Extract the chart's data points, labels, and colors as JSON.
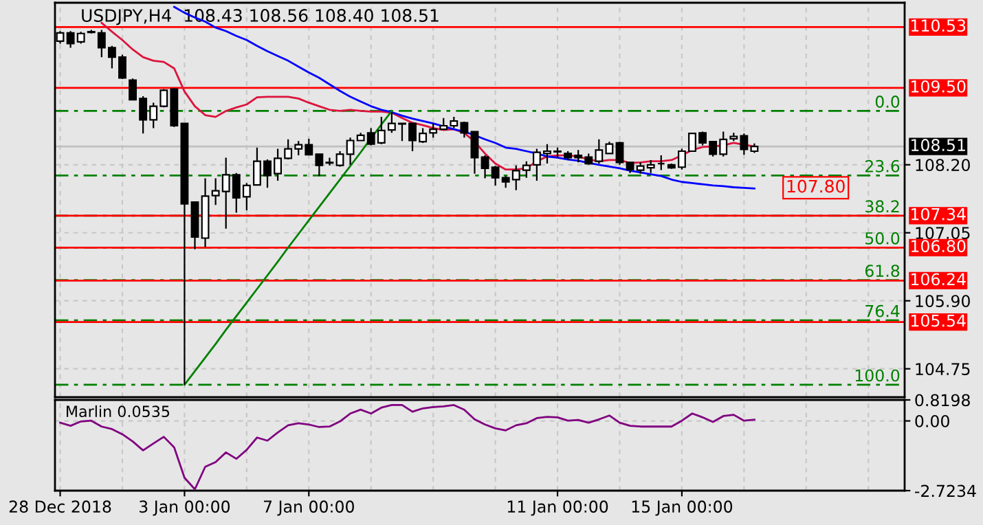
{
  "chart_data": [
    {
      "type": "candlestick",
      "title": "USDJPY,H4  108.43 108.56 108.40 108.51",
      "ohlc": [
        [
          110.29,
          110.46,
          110.25,
          110.43
        ],
        [
          110.43,
          110.46,
          110.18,
          110.25
        ],
        [
          110.28,
          110.45,
          110.25,
          110.42
        ],
        [
          110.45,
          110.48,
          110.42,
          110.44
        ],
        [
          110.43,
          110.48,
          110.02,
          110.18
        ],
        [
          110.18,
          110.21,
          109.83,
          110.02
        ],
        [
          110.02,
          110.06,
          109.65,
          109.67
        ],
        [
          109.63,
          109.66,
          109.29,
          109.3
        ],
        [
          109.32,
          109.36,
          108.73,
          108.96
        ],
        [
          108.96,
          109.25,
          108.82,
          109.19
        ],
        [
          109.19,
          109.48,
          109.17,
          109.46
        ],
        [
          109.48,
          109.5,
          108.84,
          108.86
        ],
        [
          108.9,
          108.91,
          104.48,
          107.54
        ],
        [
          107.57,
          107.58,
          106.77,
          106.98
        ],
        [
          106.96,
          107.97,
          106.81,
          107.67
        ],
        [
          107.68,
          107.97,
          107.52,
          107.76
        ],
        [
          107.75,
          108.32,
          107.12,
          108.03
        ],
        [
          108.03,
          108.06,
          107.39,
          107.64
        ],
        [
          107.66,
          107.89,
          107.43,
          107.85
        ],
        [
          107.86,
          108.49,
          107.85,
          108.26
        ],
        [
          108.26,
          108.29,
          107.81,
          108.02
        ],
        [
          108.05,
          108.47,
          107.93,
          108.31
        ],
        [
          108.31,
          108.63,
          108.29,
          108.47
        ],
        [
          108.47,
          108.6,
          108.36,
          108.54
        ],
        [
          108.54,
          108.64,
          108.36,
          108.37
        ],
        [
          108.38,
          108.39,
          108.01,
          108.19
        ],
        [
          108.24,
          108.32,
          108.19,
          108.23
        ],
        [
          108.19,
          108.43,
          108.17,
          108.38
        ],
        [
          108.38,
          108.66,
          108.2,
          108.61
        ],
        [
          108.61,
          108.74,
          108.6,
          108.7
        ],
        [
          108.74,
          108.82,
          108.53,
          108.55
        ],
        [
          108.57,
          109.01,
          108.55,
          108.78
        ],
        [
          108.79,
          109.09,
          108.74,
          108.9
        ],
        [
          108.9,
          108.91,
          108.6,
          108.89
        ],
        [
          108.9,
          108.91,
          108.43,
          108.61
        ],
        [
          108.59,
          108.82,
          108.57,
          108.73
        ],
        [
          108.74,
          108.9,
          108.66,
          108.8
        ],
        [
          108.8,
          108.99,
          108.79,
          108.86
        ],
        [
          108.86,
          109.01,
          108.82,
          108.94
        ],
        [
          108.91,
          108.93,
          108.66,
          108.74
        ],
        [
          108.76,
          108.77,
          108.05,
          108.32
        ],
        [
          108.33,
          108.36,
          107.97,
          108.14
        ],
        [
          108.16,
          108.18,
          107.85,
          107.98
        ],
        [
          107.98,
          108.01,
          107.81,
          107.91
        ],
        [
          107.95,
          108.19,
          107.77,
          108.1
        ],
        [
          108.11,
          108.26,
          107.98,
          108.19
        ],
        [
          108.2,
          108.47,
          107.93,
          108.41
        ],
        [
          108.39,
          108.55,
          108.22,
          108.43
        ],
        [
          108.43,
          108.49,
          108.32,
          108.42
        ],
        [
          108.39,
          108.43,
          108.28,
          108.32
        ],
        [
          108.36,
          108.45,
          108.24,
          108.32
        ],
        [
          108.33,
          108.39,
          108.2,
          108.22
        ],
        [
          108.26,
          108.63,
          108.22,
          108.45
        ],
        [
          108.39,
          108.59,
          108.38,
          108.55
        ],
        [
          108.57,
          108.59,
          108.2,
          108.24
        ],
        [
          108.24,
          108.25,
          108.06,
          108.12
        ],
        [
          108.11,
          108.24,
          108.05,
          108.18
        ],
        [
          108.15,
          108.28,
          108.06,
          108.2
        ],
        [
          108.22,
          108.36,
          108.11,
          108.22
        ],
        [
          108.2,
          108.22,
          108.13,
          108.15
        ],
        [
          108.16,
          108.47,
          108.12,
          108.43
        ],
        [
          108.43,
          108.74,
          108.42,
          108.73
        ],
        [
          108.74,
          108.76,
          108.53,
          108.57
        ],
        [
          108.59,
          108.6,
          108.34,
          108.38
        ],
        [
          108.38,
          108.76,
          108.34,
          108.63
        ],
        [
          108.64,
          108.74,
          108.6,
          108.68
        ],
        [
          108.69,
          108.73,
          108.37,
          108.46
        ],
        [
          108.43,
          108.56,
          108.4,
          108.51
        ],
        null,
        null,
        null,
        null,
        null,
        null,
        null,
        null,
        null,
        null,
        null,
        null,
        null,
        null
      ],
      "series": [
        {
          "type": "line",
          "color": "#dc143c",
          "values": [
            null,
            null,
            null,
            null,
            110.6,
            110.45,
            110.31,
            110.15,
            110.02,
            109.96,
            109.94,
            109.83,
            109.44,
            109.19,
            109.04,
            109.01,
            109.11,
            109.17,
            109.22,
            109.34,
            109.35,
            109.35,
            109.35,
            109.32,
            109.25,
            109.19,
            109.13,
            109.11,
            109.13,
            109.11,
            109.1,
            109.1,
            109.08,
            108.99,
            108.91,
            108.87,
            108.82,
            108.79,
            108.8,
            108.74,
            108.59,
            108.39,
            108.22,
            108.12,
            108.12,
            108.14,
            108.26,
            108.34,
            108.36,
            108.36,
            108.34,
            108.29,
            108.26,
            108.28,
            108.28,
            108.23,
            108.24,
            108.26,
            108.26,
            108.28,
            108.36,
            108.45,
            108.5,
            108.51,
            108.53,
            108.57,
            108.54,
            108.51,
            null,
            null,
            null,
            null,
            null,
            null,
            null,
            null,
            null,
            null,
            null,
            null,
            null,
            null
          ]
        },
        {
          "type": "line",
          "color": "#0000ff",
          "values": [
            null,
            null,
            null,
            null,
            null,
            null,
            null,
            null,
            null,
            null,
            null,
            110.87,
            110.77,
            110.69,
            110.62,
            110.52,
            110.46,
            110.38,
            110.31,
            110.21,
            110.12,
            110.04,
            109.96,
            109.86,
            109.76,
            109.67,
            109.56,
            109.45,
            109.35,
            109.27,
            109.19,
            109.13,
            109.09,
            109.03,
            108.98,
            108.94,
            108.9,
            108.85,
            108.8,
            108.76,
            108.7,
            108.63,
            108.57,
            108.49,
            108.47,
            108.43,
            108.39,
            108.34,
            108.32,
            108.29,
            108.27,
            108.23,
            108.2,
            108.17,
            108.14,
            108.1,
            108.07,
            108.04,
            108.01,
            107.95,
            107.91,
            107.89,
            107.87,
            107.85,
            107.84,
            107.82,
            107.81,
            107.8,
            null,
            null,
            null,
            null,
            null,
            null,
            null,
            null,
            null,
            null,
            null,
            null,
            null,
            null
          ]
        },
        {
          "type": "line",
          "color": "#008000",
          "values": [
            null,
            null,
            null,
            null,
            null,
            null,
            null,
            null,
            null,
            null,
            null,
            null,
            104.48,
            104.71,
            104.94,
            105.17,
            105.41,
            105.64,
            105.87,
            106.1,
            106.33,
            106.56,
            106.8,
            107.03,
            107.26,
            107.49,
            107.72,
            107.95,
            108.18,
            108.41,
            108.65,
            108.88,
            109.11,
            null,
            null,
            null,
            null,
            null,
            null,
            null,
            null,
            null,
            null,
            null,
            null,
            null,
            null,
            null,
            null,
            null,
            null,
            null,
            null,
            null,
            null,
            null,
            null,
            null,
            null,
            null,
            null,
            null,
            null,
            null,
            null,
            null,
            null,
            null,
            null,
            null,
            null,
            null,
            null,
            null,
            null,
            null,
            null,
            null,
            null,
            null,
            null,
            null
          ]
        }
      ],
      "ylim": [
        104.27,
        110.94
      ],
      "yticks": [
        104.75,
        {
          "value": 105.9,
          "label": "105.90"
        },
        107.05,
        {
          "value": 108.2,
          "label": "108.20"
        }
      ],
      "ref_lines": [
        {
          "axis": "y",
          "value": 109.11,
          "color": "#008000",
          "line_style": "dashed"
        },
        {
          "axis": "y",
          "value": 108.02,
          "color": "#008000",
          "line_style": "dashed"
        },
        {
          "axis": "y",
          "value": 107.34,
          "color": "#008000",
          "line_style": "dashed"
        },
        {
          "axis": "y",
          "value": 106.8,
          "color": "#008000",
          "line_style": "dashed"
        },
        {
          "axis": "y",
          "value": 106.25,
          "color": "#008000",
          "line_style": "dashed"
        },
        {
          "axis": "y",
          "value": 105.57,
          "color": "#008000",
          "line_style": "dashed"
        },
        {
          "axis": "y",
          "value": 104.48,
          "color": "#008000",
          "line_style": "dashed"
        },
        {
          "axis": "y",
          "value": 108.51,
          "label": "108.51",
          "color": "#c0c0c0",
          "line_style": "solid"
        },
        {
          "axis": "y",
          "value": 110.53,
          "label": "110.53",
          "color": "#ff0000",
          "line_style": "solid"
        },
        {
          "axis": "y",
          "value": 109.5,
          "label": "109.50",
          "color": "#ff0000",
          "line_style": "solid"
        },
        {
          "axis": "y",
          "value": 107.34,
          "label": "107.34",
          "color": "#ff0000",
          "line_style": "solid"
        },
        {
          "axis": "y",
          "value": 106.8,
          "label": "106.80",
          "color": "#ff0000",
          "line_style": "solid"
        },
        {
          "axis": "y",
          "value": 106.24,
          "label": "106.24",
          "color": "#ff0000",
          "line_style": "solid"
        },
        {
          "axis": "y",
          "value": 105.54,
          "label": "105.54",
          "color": "#ff0000",
          "line_style": "solid"
        }
      ],
      "annotations": [
        "107.80",
        {
          "text": "0.0",
          "y": 109.11
        },
        {
          "text": "23.6",
          "y": 108.02
        },
        {
          "text": "38.2",
          "y": 107.34
        },
        {
          "text": "50.0",
          "y": 106.8
        },
        {
          "text": "61.8",
          "y": 106.25
        },
        {
          "text": "76.4",
          "y": 105.57
        },
        {
          "text": "100.0",
          "y": 104.48
        }
      ],
      "grid": true,
      "tick_labels": "y"
    },
    {
      "type": "line",
      "title": "Marlin 0.0535",
      "categories": [
        "28 Dec 2018",
        null,
        null,
        null,
        null,
        null,
        null,
        null,
        null,
        null,
        null,
        null,
        "3 Jan 00:00",
        null,
        null,
        null,
        null,
        null,
        null,
        null,
        null,
        null,
        null,
        null,
        "7 Jan 00:00",
        null,
        null,
        null,
        null,
        null,
        null,
        null,
        null,
        null,
        null,
        null,
        null,
        null,
        null,
        null,
        null,
        null,
        null,
        null,
        null,
        null,
        null,
        null,
        "11 Jan 00:00",
        null,
        null,
        null,
        null,
        null,
        null,
        null,
        null,
        null,
        null,
        null,
        "15 Jan 00:00",
        null,
        null,
        null,
        null,
        null,
        null,
        null,
        null,
        null,
        null,
        null,
        null,
        null,
        null,
        null,
        null,
        null,
        null,
        null,
        null,
        null
      ],
      "series": [
        {
          "color": "#800080",
          "values": [
            -0.07,
            -0.19,
            -0.02,
            0.01,
            -0.22,
            -0.32,
            -0.52,
            -0.8,
            -1.15,
            -0.88,
            -0.62,
            -1.03,
            -2.22,
            -2.67,
            -1.79,
            -1.61,
            -1.23,
            -1.48,
            -1.13,
            -0.65,
            -0.77,
            -0.45,
            -0.17,
            -0.09,
            -0.14,
            -0.24,
            -0.22,
            -0.02,
            0.29,
            0.44,
            0.29,
            0.52,
            0.62,
            0.62,
            0.36,
            0.49,
            0.54,
            0.57,
            0.62,
            0.44,
            0.06,
            -0.14,
            -0.29,
            -0.37,
            -0.17,
            -0.09,
            0.11,
            0.16,
            0.14,
            0.01,
            0.04,
            -0.07,
            0.06,
            0.21,
            -0.07,
            -0.19,
            -0.22,
            -0.22,
            -0.22,
            -0.22,
            0.01,
            0.29,
            0.14,
            -0.04,
            0.19,
            0.24,
            0.01,
            0.05,
            null,
            null,
            null,
            null,
            null,
            null,
            null,
            null,
            null,
            null,
            null,
            null,
            null,
            null
          ]
        }
      ],
      "ylim": [
        -2.7234,
        0.8198
      ],
      "yticks": [
        0.8198,
        {
          "value": 0,
          "label": "0.00"
        },
        -2.7234
      ],
      "grid": true
    }
  ]
}
